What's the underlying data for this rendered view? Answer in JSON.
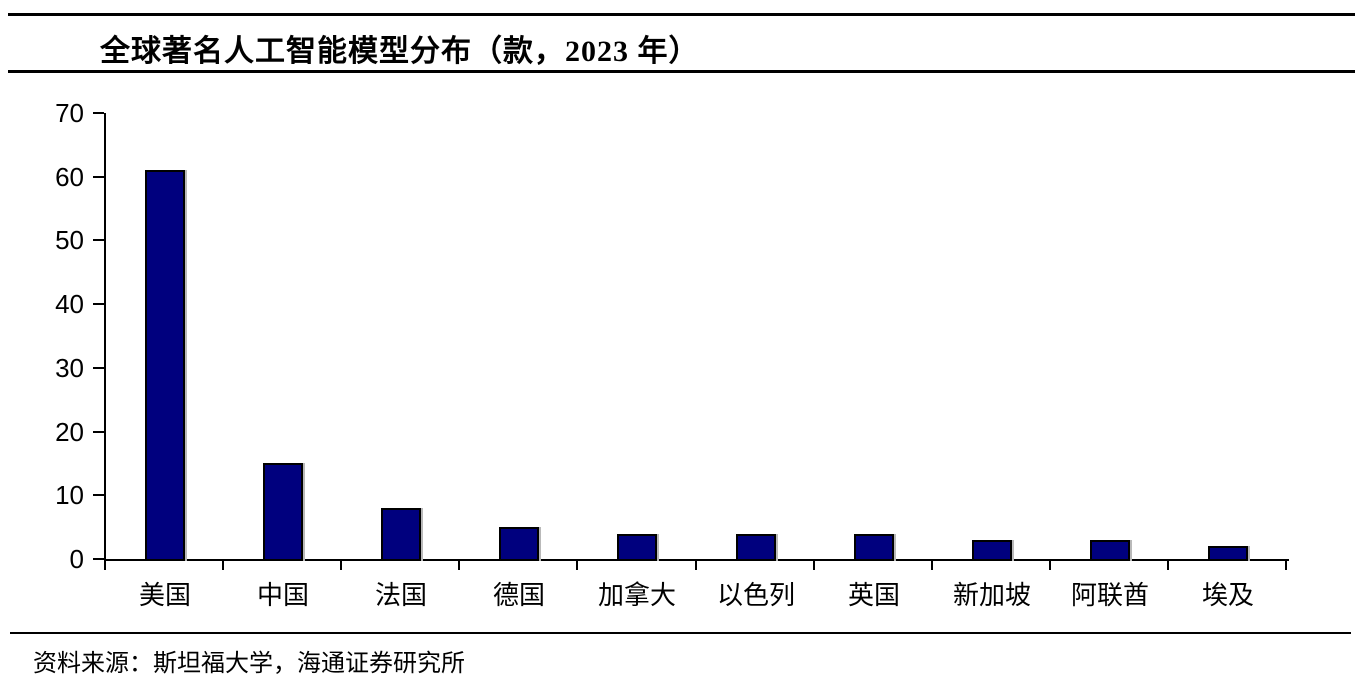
{
  "title": "全球著名人工智能模型分布（款，2023 年）",
  "source": "资料来源：斯坦福大学，海通证券研究所",
  "colors": {
    "bar_fill": "#00007E",
    "bar_border": "#000000",
    "axis": "#000000",
    "text": "#000000",
    "background": "#ffffff"
  },
  "chart_data": {
    "type": "bar",
    "title": "全球著名人工智能模型分布（款，2023 年）",
    "categories": [
      "美国",
      "中国",
      "法国",
      "德国",
      "加拿大",
      "以色列",
      "英国",
      "新加坡",
      "阿联酋",
      "埃及"
    ],
    "values": [
      61,
      15,
      8,
      5,
      4,
      4,
      4,
      3,
      3,
      2
    ],
    "xlabel": "",
    "ylabel": "",
    "ylim": [
      0,
      70
    ],
    "yticks": [
      0,
      10,
      20,
      30,
      40,
      50,
      60,
      70
    ],
    "grid": false,
    "legend": "none",
    "source": "资料来源：斯坦福大学，海通证券研究所"
  }
}
